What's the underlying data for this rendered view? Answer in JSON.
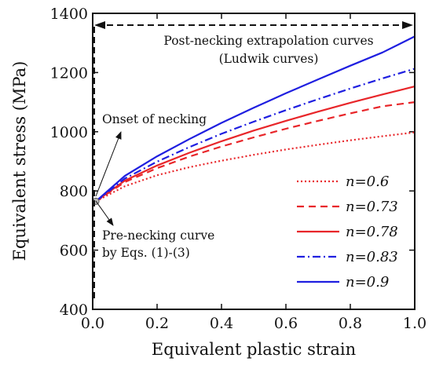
{
  "chart_data": {
    "type": "line",
    "xlabel": "Equivalent plastic strain",
    "ylabel": "Equivalent stress (MPa)",
    "xlim": [
      0.0,
      1.0
    ],
    "ylim": [
      400,
      1400
    ],
    "x_ticks": [
      "0.0",
      "0.2",
      "0.4",
      "0.6",
      "0.8",
      "1.0"
    ],
    "y_ticks": [
      "400",
      "600",
      "800",
      "1000",
      "1200",
      "1400"
    ],
    "grid": false,
    "legend_position": "lower-right",
    "onset_point": {
      "x": 0.01,
      "y": 765
    },
    "pre_necking": {
      "x": [
        0.0,
        0.0
      ],
      "y": [
        720,
        765
      ]
    },
    "series": [
      {
        "name": "n=0.6",
        "style": "dotted",
        "color": "#e8262a",
        "x": [
          0.01,
          0.1,
          0.2,
          0.3,
          0.4,
          0.5,
          0.6,
          0.7,
          0.8,
          0.9,
          1.0
        ],
        "y": [
          765,
          816,
          853,
          880,
          902,
          922,
          940,
          956,
          971,
          985,
          998
        ]
      },
      {
        "name": "n=0.73",
        "style": "dashed",
        "color": "#e8262a",
        "x": [
          0.01,
          0.1,
          0.2,
          0.3,
          0.4,
          0.5,
          0.6,
          0.7,
          0.8,
          0.9,
          1.0
        ],
        "y": [
          765,
          830,
          877,
          916,
          950,
          981,
          1010,
          1037,
          1062,
          1086,
          1100
        ]
      },
      {
        "name": "n=0.78",
        "style": "solid",
        "color": "#e8262a",
        "x": [
          0.01,
          0.1,
          0.2,
          0.3,
          0.4,
          0.5,
          0.6,
          0.7,
          0.8,
          0.9,
          1.0
        ],
        "y": [
          765,
          835,
          886,
          929,
          968,
          1004,
          1037,
          1068,
          1098,
          1126,
          1153
        ]
      },
      {
        "name": "n=0.83",
        "style": "dash-dot",
        "color": "#1f1fe0",
        "x": [
          0.01,
          0.1,
          0.2,
          0.3,
          0.4,
          0.5,
          0.6,
          0.7,
          0.8,
          0.9,
          1.0
        ],
        "y": [
          765,
          842,
          899,
          948,
          993,
          1034,
          1073,
          1110,
          1146,
          1180,
          1213
        ]
      },
      {
        "name": "n=0.9",
        "style": "solid",
        "color": "#1f1fe0",
        "x": [
          0.01,
          0.1,
          0.2,
          0.3,
          0.4,
          0.5,
          0.6,
          0.7,
          0.8,
          0.9,
          1.0
        ],
        "y": [
          765,
          851,
          917,
          975,
          1030,
          1081,
          1130,
          1177,
          1223,
          1268,
          1322
        ]
      }
    ],
    "annotations": {
      "post_necking_line1": "Post-necking extrapolation curves",
      "post_necking_line2": "(Ludwik curves)",
      "onset": "Onset of necking",
      "pre_necking_line1": "Pre-necking curve",
      "pre_necking_line2": "by Eqs. (1)-(3)"
    }
  }
}
